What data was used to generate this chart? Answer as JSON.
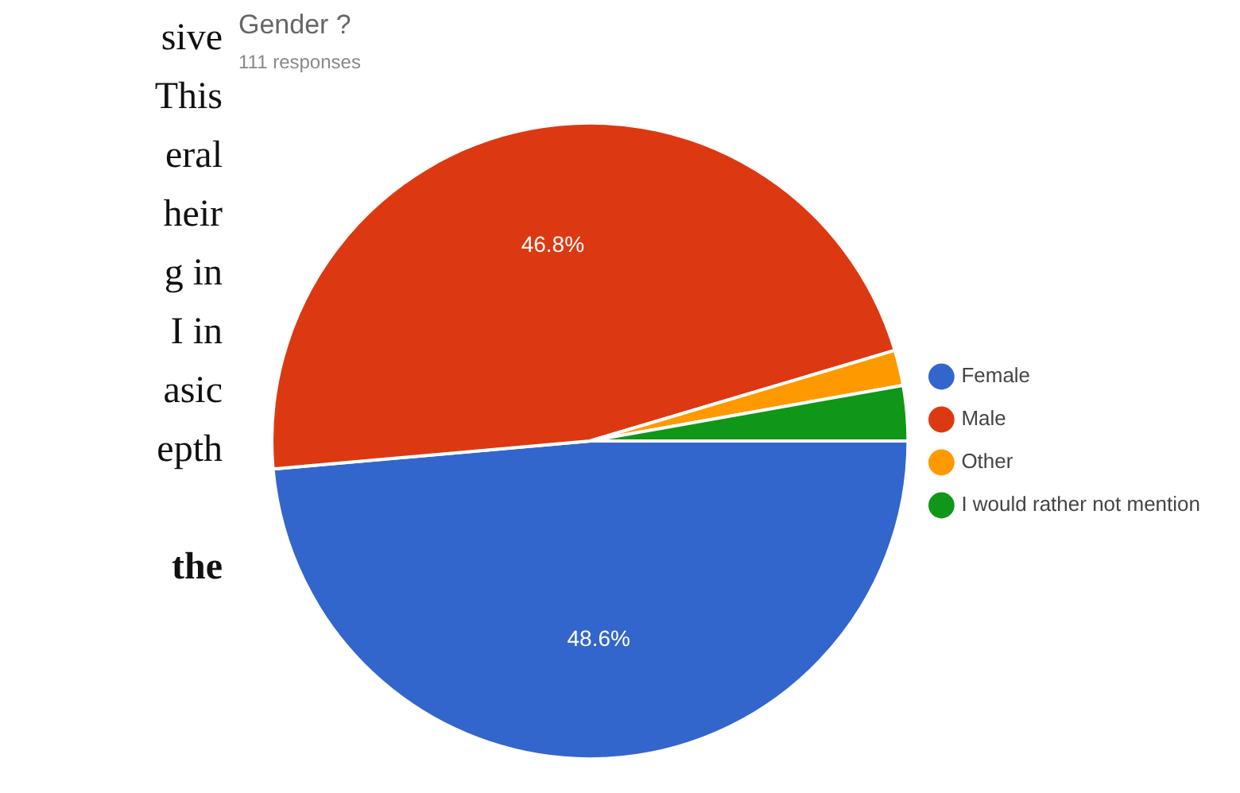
{
  "chart_data": {
    "type": "pie",
    "title": "Gender ?",
    "subtitle": "111 responses",
    "annotations": [
      "sive",
      "This",
      "eral",
      "heir",
      "g in",
      "I in",
      "asic",
      "epth",
      "the"
    ],
    "categories": [
      "Female",
      "Male",
      "Other",
      "I would rather not mention"
    ],
    "values": [
      48.6,
      46.8,
      1.8,
      2.8
    ],
    "colors": [
      "#3366cc",
      "#dc3912",
      "#ff9900",
      "#109618"
    ],
    "value_labels": [
      "48.6%",
      "46.8%",
      null,
      null
    ],
    "legend": "right"
  }
}
